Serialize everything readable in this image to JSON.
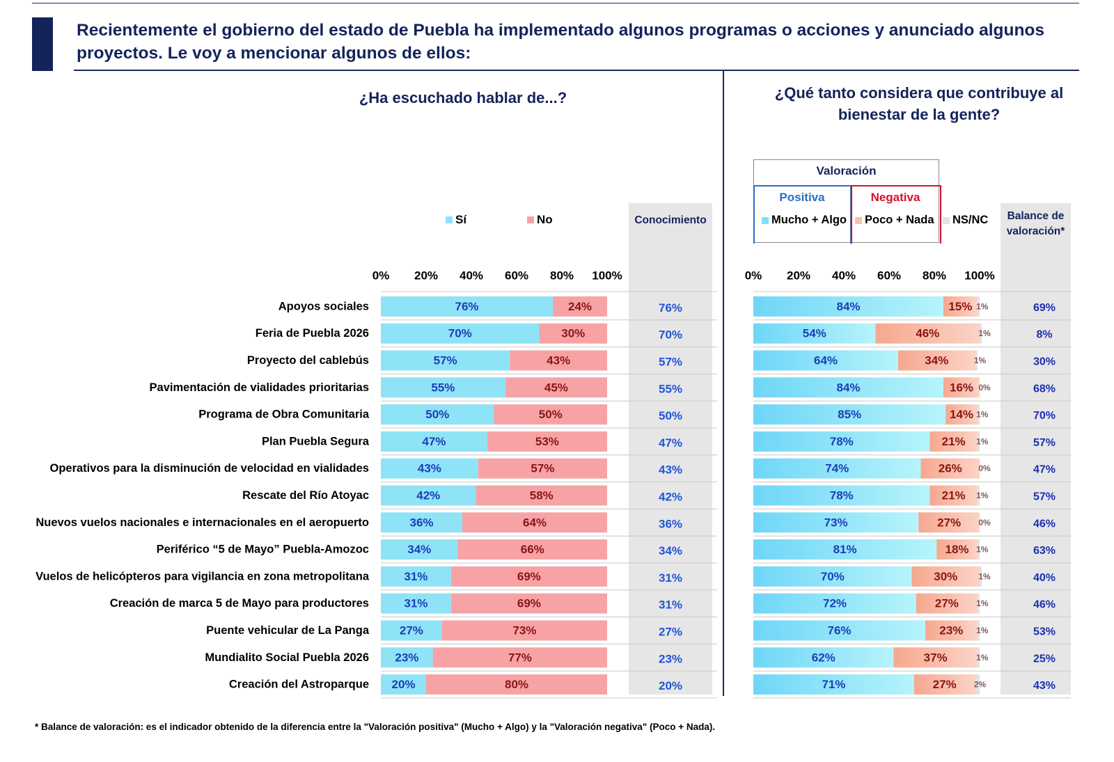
{
  "title": "Recientemente el gobierno del estado de Puebla ha implementado algunos programas o acciones y anunciado algunos proyectos. Le voy a mencionar algunos de ellos:",
  "left_subtitle": "¿Ha escuchado hablar de...?",
  "right_subtitle": "¿Qué tanto considera que contribuye al bienestar de la gente?",
  "conocimiento_header": "Conocimiento",
  "balance_header": "Balance de valoración*",
  "valoracion": {
    "title": "Valoración",
    "positiva": "Positiva",
    "negativa": "Negativa"
  },
  "legend_left": {
    "si": "Sí",
    "no": "No"
  },
  "legend_right": {
    "pos": "Mucho + Algo",
    "neg": "Poco + Nada",
    "nsnc": "NS/NC"
  },
  "colors": {
    "si": "#8fe3f7",
    "no": "#f7a3a6",
    "pos": "#7ee0f8",
    "neg": "#f8c3aa",
    "nsnc": "#e2e2e2",
    "navy": "#14235a"
  },
  "footnote": "* Balance de valoración: es el indicador obtenido de la diferencia entre la \"Valoración positiva\" (Mucho + Algo) y la \"Valoración negativa\" (Poco + Nada).",
  "chart_data": [
    {
      "type": "bar",
      "orientation": "horizontal",
      "stacked": true,
      "title": "¿Ha escuchado hablar de...?",
      "xlim": [
        0,
        100
      ],
      "ticks": [
        "0%",
        "20%",
        "40%",
        "60%",
        "80%",
        "100%"
      ],
      "categories": [
        "Apoyos sociales",
        "Feria de Puebla 2026",
        "Proyecto del cablebús",
        "Pavimentación de vialidades prioritarias",
        "Programa de Obra Comunitaria",
        "Plan Puebla Segura",
        "Operativos para la disminución de velocidad en vialidades",
        "Rescate del Río Atoyac",
        "Nuevos vuelos nacionales e internacionales en el aeropuerto",
        "Periférico “5 de Mayo” Puebla-Amozoc",
        "Vuelos de helicópteros para vigilancia en zona metropolitana",
        "Creación de marca 5 de Mayo para productores",
        "Puente vehicular de La Panga",
        "Mundialito Social Puebla 2026",
        "Creación del Astroparque"
      ],
      "series": [
        {
          "name": "Sí",
          "values": [
            76,
            70,
            57,
            55,
            50,
            47,
            43,
            42,
            36,
            34,
            31,
            31,
            27,
            23,
            20
          ]
        },
        {
          "name": "No",
          "values": [
            24,
            30,
            43,
            45,
            50,
            53,
            57,
            58,
            64,
            66,
            69,
            69,
            73,
            77,
            80
          ]
        }
      ],
      "conocimiento": [
        76,
        70,
        57,
        55,
        50,
        47,
        43,
        42,
        36,
        34,
        31,
        31,
        27,
        23,
        20
      ]
    },
    {
      "type": "bar",
      "orientation": "horizontal",
      "stacked": true,
      "title": "¿Qué tanto considera que contribuye al bienestar de la gente?",
      "xlim": [
        0,
        100
      ],
      "ticks": [
        "0%",
        "20%",
        "40%",
        "60%",
        "80%",
        "100%"
      ],
      "series": [
        {
          "name": "Mucho + Algo",
          "values": [
            84,
            54,
            64,
            84,
            85,
            78,
            74,
            78,
            73,
            81,
            70,
            72,
            76,
            62,
            71
          ]
        },
        {
          "name": "Poco + Nada",
          "values": [
            15,
            46,
            34,
            16,
            14,
            21,
            26,
            21,
            27,
            18,
            30,
            27,
            23,
            37,
            27
          ]
        },
        {
          "name": "NS/NC",
          "values": [
            1,
            1,
            1,
            0,
            1,
            1,
            0,
            1,
            0,
            1,
            1,
            1,
            1,
            1,
            2
          ]
        }
      ],
      "balance": [
        69,
        8,
        30,
        68,
        70,
        57,
        47,
        57,
        46,
        63,
        40,
        46,
        53,
        25,
        43
      ]
    }
  ]
}
